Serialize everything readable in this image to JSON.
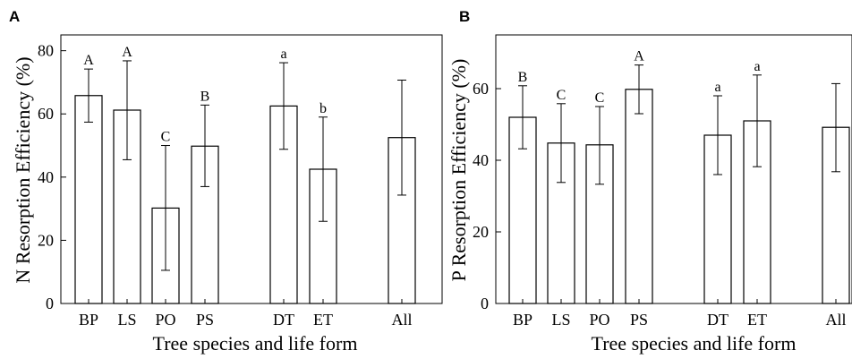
{
  "chart_data": [
    {
      "type": "bar",
      "panel": "A",
      "xlabel": "Tree species and life form",
      "ylabel": "N Resorption Efficiency (%)",
      "ylim": [
        0,
        85
      ],
      "yticks": [
        0,
        20,
        40,
        60,
        80
      ],
      "categories": [
        "BP",
        "LS",
        "PO",
        "PS",
        "DT",
        "ET",
        "All"
      ],
      "values": [
        65.8,
        61.2,
        30.2,
        49.8,
        62.5,
        42.5,
        52.5
      ],
      "err_low": [
        57.4,
        45.5,
        10.5,
        37.0,
        48.8,
        26.0,
        34.3
      ],
      "err_high": [
        74.2,
        76.8,
        50.0,
        62.8,
        76.2,
        59.0,
        70.7
      ],
      "significance": [
        "A",
        "A",
        "C",
        "B",
        "a",
        "b",
        ""
      ]
    },
    {
      "type": "bar",
      "panel": "B",
      "xlabel": "Tree species and life form",
      "ylabel": "P Resorption Efficiency (%)",
      "ylim": [
        0,
        75
      ],
      "yticks": [
        0,
        20,
        40,
        60
      ],
      "categories": [
        "BP",
        "LS",
        "PO",
        "PS",
        "DT",
        "ET",
        "All"
      ],
      "values": [
        52.0,
        44.8,
        44.3,
        59.8,
        47.0,
        51.0,
        49.2
      ],
      "err_low": [
        43.2,
        33.8,
        33.3,
        53.0,
        36.0,
        38.2,
        36.8
      ],
      "err_high": [
        60.8,
        55.8,
        55.0,
        66.6,
        58.0,
        63.8,
        61.4
      ],
      "significance": [
        "B",
        "C",
        "C",
        "A",
        "a",
        "a",
        ""
      ]
    }
  ]
}
